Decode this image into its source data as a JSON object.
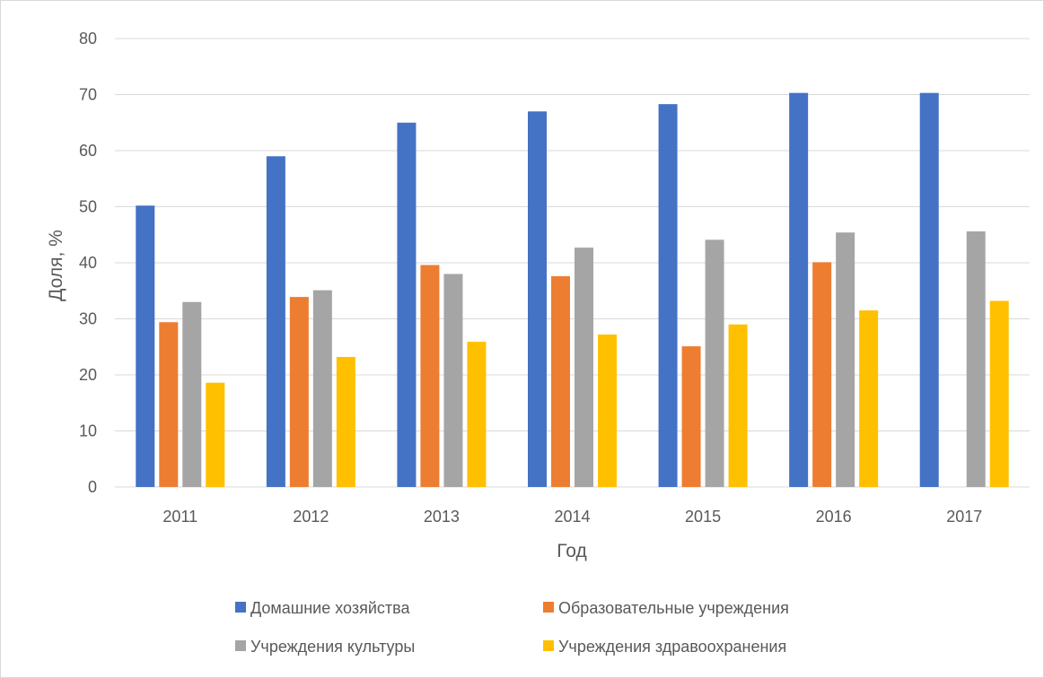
{
  "chart_data": {
    "type": "bar",
    "title": "",
    "xlabel": "Год",
    "ylabel": "Доля, %",
    "ylim": [
      0,
      80
    ],
    "y_ticks": [
      0,
      10,
      20,
      30,
      40,
      50,
      60,
      70,
      80
    ],
    "grid": true,
    "legend_position": "bottom",
    "categories": [
      "2011",
      "2012",
      "2013",
      "2014",
      "2015",
      "2016",
      "2017"
    ],
    "series": [
      {
        "name": "Домашние хозяйства",
        "color": "#4472c4",
        "values": [
          50.2,
          59.0,
          65.0,
          67.0,
          68.3,
          70.3,
          70.3
        ]
      },
      {
        "name": "Образовательные учреждения",
        "color": "#ed7d31",
        "values": [
          29.4,
          33.9,
          39.6,
          37.6,
          25.1,
          40.1,
          null
        ]
      },
      {
        "name": "Учреждения культуры",
        "color": "#a5a5a5",
        "values": [
          33.0,
          35.1,
          38.0,
          42.7,
          44.1,
          45.4,
          45.6
        ]
      },
      {
        "name": "Учреждения здравоохранения",
        "color": "#ffc000",
        "values": [
          18.6,
          23.2,
          25.9,
          27.2,
          29.0,
          31.5,
          33.2
        ]
      }
    ]
  }
}
